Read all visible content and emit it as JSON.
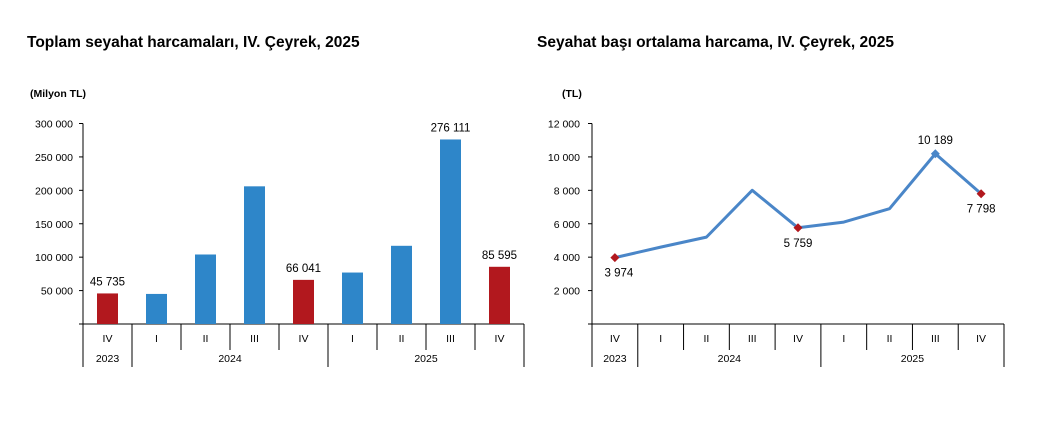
{
  "chart_data": [
    {
      "type": "bar",
      "title": "Toplam seyahat harcamaları, IV. Çeyrek, 2025",
      "unit_label": "(Milyon TL)",
      "quarters": [
        "IV",
        "I",
        "II",
        "III",
        "IV",
        "I",
        "II",
        "III",
        "IV"
      ],
      "years": [
        {
          "label": "2023",
          "span": 1
        },
        {
          "label": "2024",
          "span": 4
        },
        {
          "label": "2025",
          "span": 4
        }
      ],
      "values": [
        45735,
        45000,
        104000,
        206000,
        66041,
        77000,
        117000,
        276111,
        85595
      ],
      "highlight": [
        true,
        false,
        false,
        false,
        true,
        false,
        false,
        false,
        true
      ],
      "data_labels": [
        "45 735",
        "",
        "",
        "",
        "66 041",
        "",
        "",
        "276 111",
        "85 595"
      ],
      "ylim": [
        0,
        300000
      ],
      "yticks": [
        50000,
        100000,
        150000,
        200000,
        250000,
        300000
      ],
      "ytick_labels": [
        "50 000",
        "100 000",
        "150 000",
        "200 000",
        "250 000",
        "300 000"
      ],
      "colors": {
        "bar": "#2E86C9",
        "highlight": "#B2181E"
      }
    },
    {
      "type": "line",
      "title": "Seyahat başı ortalama harcama, IV. Çeyrek, 2025",
      "unit_label": "(TL)",
      "quarters": [
        "IV",
        "I",
        "II",
        "III",
        "IV",
        "I",
        "II",
        "III",
        "IV"
      ],
      "years": [
        {
          "label": "2023",
          "span": 1
        },
        {
          "label": "2024",
          "span": 4
        },
        {
          "label": "2025",
          "span": 4
        }
      ],
      "values": [
        3974,
        4600,
        5200,
        8000,
        5759,
        6100,
        6900,
        10189,
        7798
      ],
      "markers": [
        "red-diamond",
        null,
        null,
        null,
        "red-diamond",
        null,
        null,
        "blue-diamond",
        "red-diamond"
      ],
      "data_labels": [
        "3 974",
        "",
        "",
        "",
        "5 759",
        "",
        "",
        "10 189",
        "7 798"
      ],
      "ylim": [
        0,
        12000
      ],
      "yticks": [
        2000,
        4000,
        6000,
        8000,
        10000,
        12000
      ],
      "ytick_labels": [
        "2 000",
        "4 000",
        "6 000",
        "8 000",
        "10 000",
        "12 000"
      ],
      "colors": {
        "line": "#4A86C8",
        "highlight": "#B2181E",
        "point": "#4A86C8"
      }
    }
  ]
}
